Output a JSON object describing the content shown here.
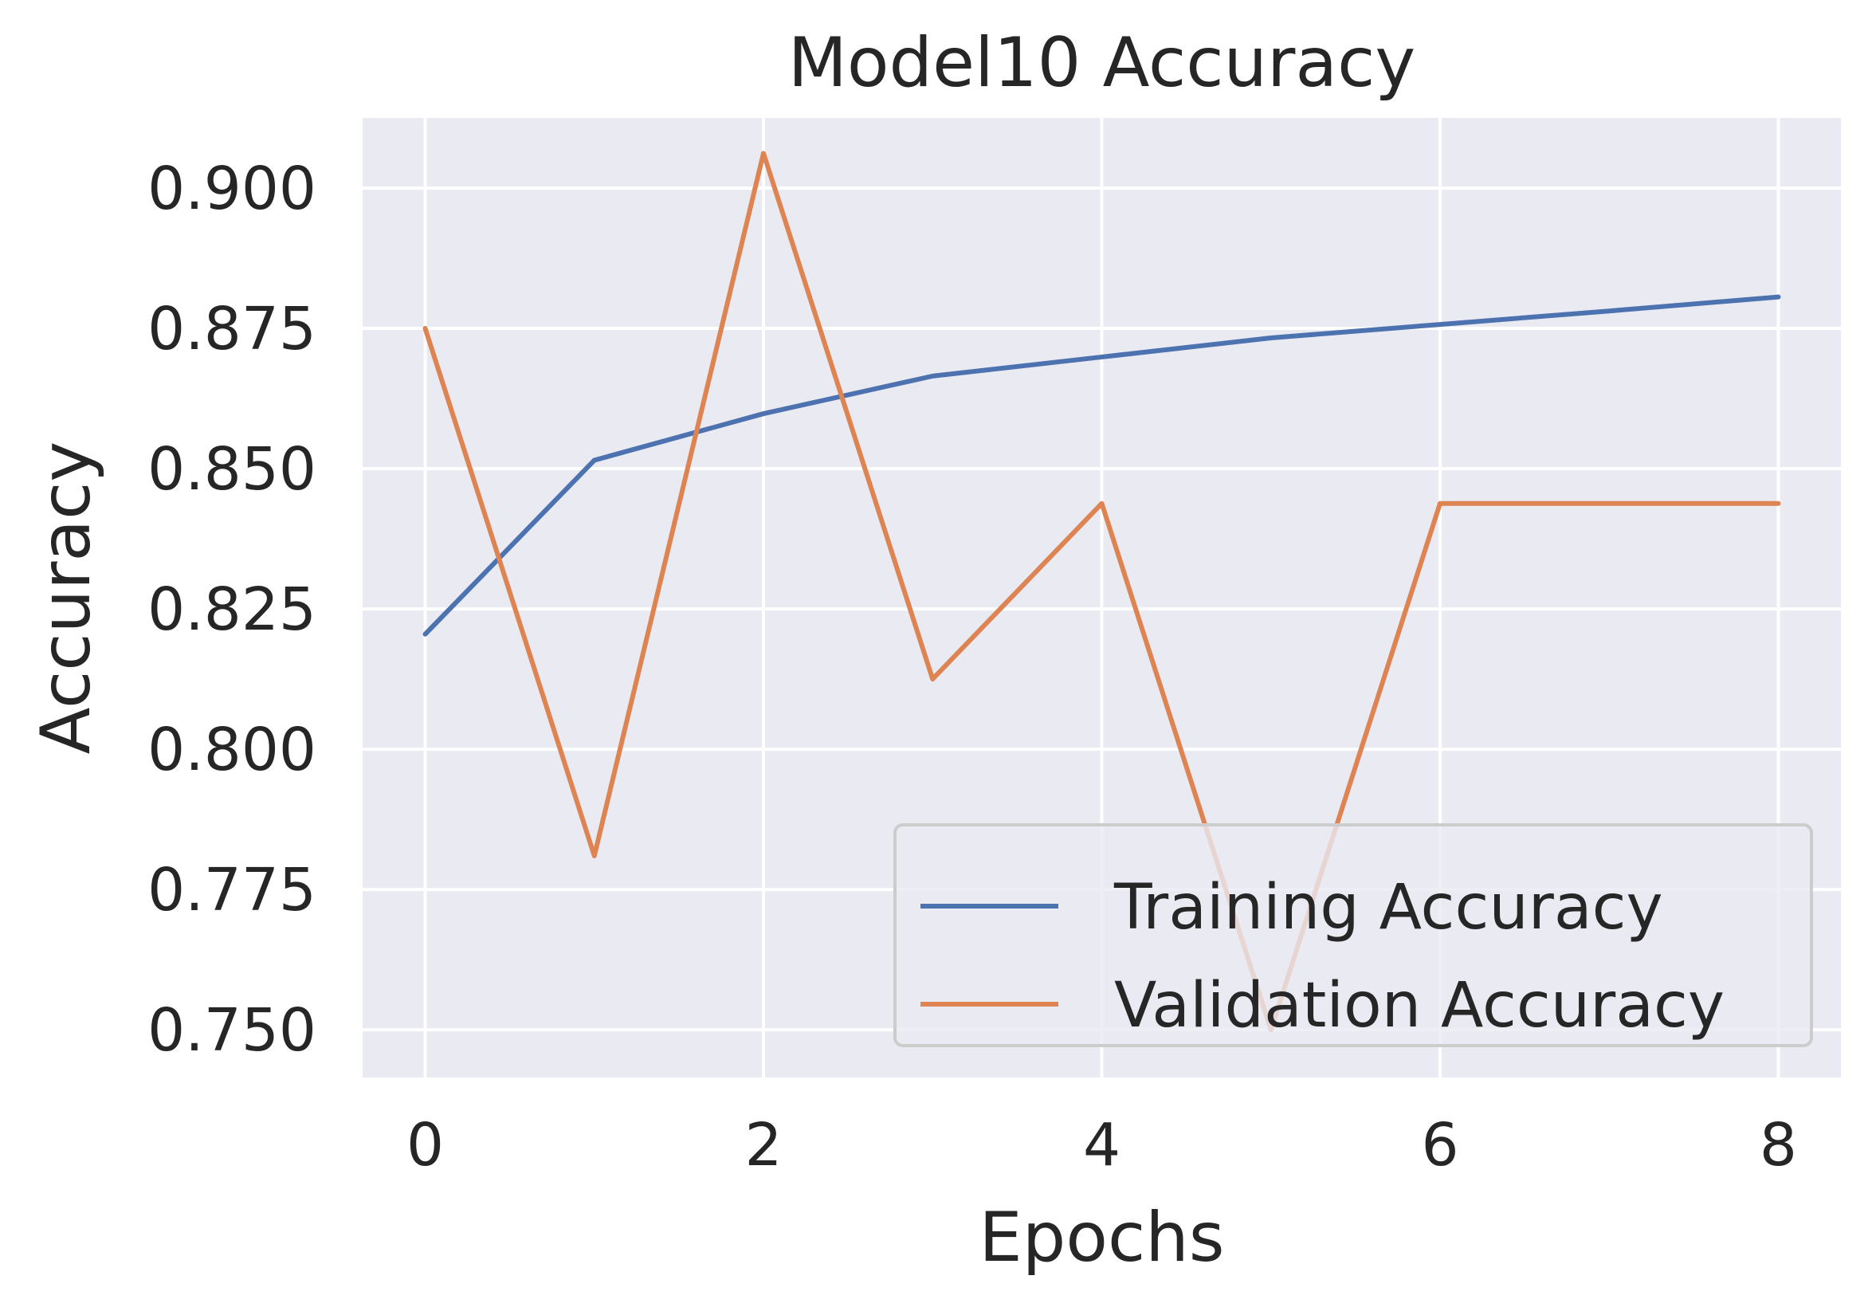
{
  "chart_data": {
    "type": "line",
    "title": "Model10 Accuracy",
    "xlabel": "Epochs",
    "ylabel": "Accuracy",
    "x": [
      0,
      1,
      2,
      3,
      4,
      5,
      6,
      7,
      8
    ],
    "xlim": [
      -0.37,
      8.37
    ],
    "ylim": [
      0.7415,
      0.9125
    ],
    "xticks": [
      0,
      2,
      4,
      6,
      8
    ],
    "xtick_labels": [
      "0",
      "2",
      "4",
      "6",
      "8"
    ],
    "yticks": [
      0.75,
      0.775,
      0.8,
      0.825,
      0.85,
      0.875,
      0.9
    ],
    "ytick_labels": [
      "0.750",
      "0.775",
      "0.800",
      "0.825",
      "0.850",
      "0.875",
      "0.900"
    ],
    "grid": true,
    "legend_position": "lower right",
    "series": [
      {
        "name": "Training Accuracy",
        "color": "#4c72b0",
        "values": [
          0.8205,
          0.8515,
          0.8598,
          0.8665,
          0.8699,
          0.8733,
          0.8757,
          0.8781,
          0.8806
        ]
      },
      {
        "name": "Validation Accuracy",
        "color": "#dd8452",
        "values": [
          0.875,
          0.781,
          0.9062,
          0.8125,
          0.8438,
          0.75,
          0.8438,
          0.8438,
          0.8438
        ]
      }
    ]
  },
  "colors": {
    "plot_background": "#eaeaf2",
    "grid": "#ffffff",
    "text": "#262626"
  }
}
